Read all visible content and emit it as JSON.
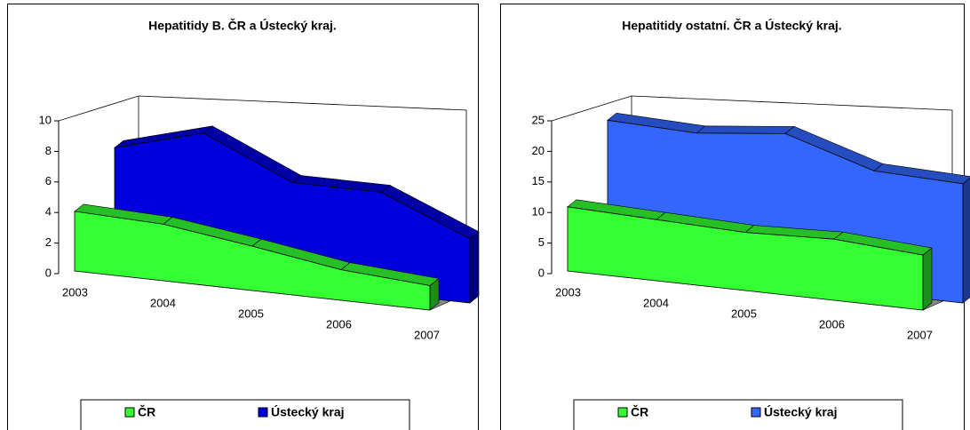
{
  "chart_data": [
    {
      "type": "area3d",
      "title": "Hepatitidy B. ČR a Ústecký kraj.",
      "categories": [
        "2003",
        "2004",
        "2005",
        "2006",
        "2007"
      ],
      "series": [
        {
          "name": "ČR",
          "color": "#33ff33",
          "values": [
            3.9,
            3.7,
            2.9,
            2.0,
            1.6
          ]
        },
        {
          "name": "Ústecký kraj",
          "color": "#0000dd",
          "values": [
            7.6,
            9.2,
            6.6,
            6.6,
            4.2
          ]
        }
      ],
      "ylim": [
        0,
        10
      ],
      "yticks": [
        0,
        2,
        4,
        6,
        8,
        10
      ],
      "grid": false,
      "legend": "bottom"
    },
    {
      "type": "area3d",
      "title": "Hepatitidy ostatní. ČR a Ústecký kraj.",
      "categories": [
        "2003",
        "2004",
        "2005",
        "2006",
        "2007"
      ],
      "series": [
        {
          "name": "ČR",
          "color": "#33ff33",
          "values": [
            10.5,
            10,
            9.5,
            10,
            9
          ]
        },
        {
          "name": "Ústecký kraj",
          "color": "#3366ff",
          "values": [
            23.5,
            23,
            24.5,
            20,
            19.5
          ]
        }
      ],
      "ylim": [
        0,
        25
      ],
      "yticks": [
        0,
        5,
        10,
        15,
        20,
        25
      ],
      "grid": false,
      "legend": "bottom"
    }
  ]
}
